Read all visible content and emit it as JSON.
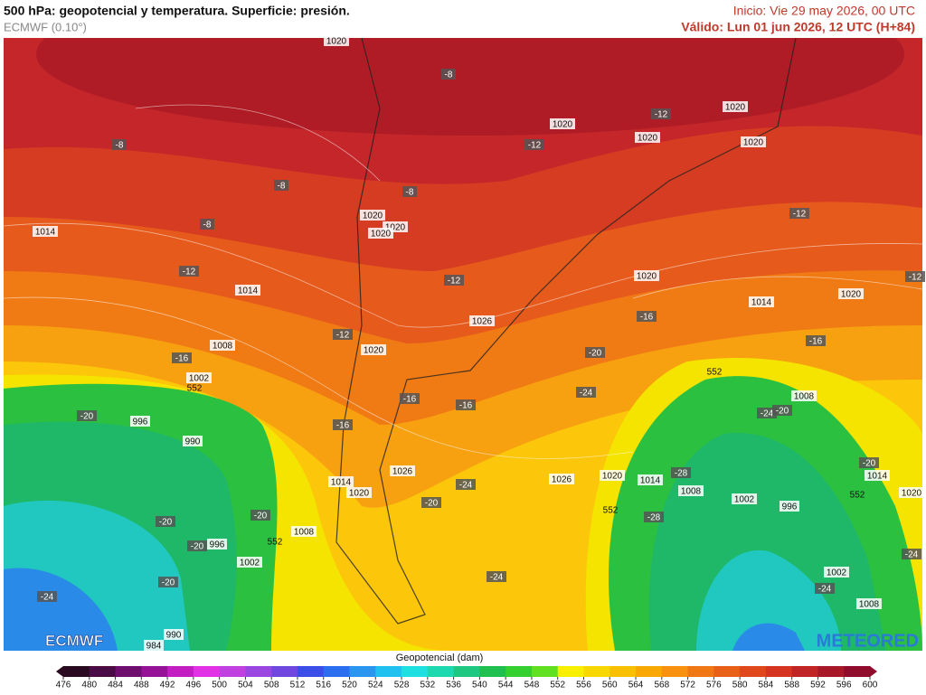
{
  "header": {
    "title": "500 hPa: geopotencial y temperatura. Superficie: presión.",
    "model": "ECMWF (0.10°)",
    "init": "Inicio: Vie 29 may 2026, 00 UTC",
    "valid": "Válido: Lun 01 jun 2026, 12 UTC (H+84)"
  },
  "logos": {
    "left": "ECMWF",
    "right": "METEORED"
  },
  "map": {
    "isobar_labels": [
      "1020",
      "1020",
      "1020",
      "1020",
      "1020",
      "1014",
      "1020",
      "1020",
      "1020",
      "1014",
      "1020",
      "1020",
      "1014",
      "1026",
      "1008",
      "1020",
      "1002",
      "1008",
      "996",
      "990",
      "1026",
      "1020",
      "1014",
      "1014",
      "1026",
      "1014",
      "1020",
      "1008",
      "1002",
      "1020",
      "996",
      "1008",
      "996",
      "1002",
      "1002",
      "1008",
      "990",
      "984"
    ],
    "temperature_labels": [
      "-8",
      "-12",
      "-12",
      "-8",
      "-8",
      "-8",
      "-12",
      "-8",
      "-12",
      "-12",
      "-12",
      "-16",
      "-12",
      "-16",
      "-20",
      "-16",
      "-24",
      "-16",
      "-16",
      "-20",
      "-24",
      "-20",
      "-16",
      "-20",
      "-28",
      "-24",
      "-20",
      "-20",
      "-28",
      "-20",
      "-20",
      "-24",
      "-24",
      "-20",
      "-24",
      "-24"
    ],
    "contour_labels": [
      "552",
      "552",
      "552",
      "552",
      "552"
    ]
  },
  "colorbar": {
    "title": "Geopotencial (dam)",
    "ticks": [
      476,
      480,
      484,
      488,
      492,
      496,
      500,
      504,
      508,
      512,
      516,
      520,
      524,
      528,
      532,
      536,
      540,
      544,
      548,
      552,
      556,
      560,
      564,
      568,
      572,
      576,
      580,
      584,
      588,
      592,
      596,
      600
    ],
    "colors": [
      "#2a0a20",
      "#4a0c44",
      "#6e0f70",
      "#961296",
      "#c21ec2",
      "#e232e6",
      "#c040e0",
      "#9a46e0",
      "#7048e0",
      "#3c4ee8",
      "#2c6ef0",
      "#2a96f0",
      "#20c0f0",
      "#1ee0e0",
      "#1ed8b0",
      "#1ec880",
      "#20c050",
      "#34d030",
      "#60e020",
      "#f8f000",
      "#f8d800",
      "#f8c000",
      "#f8a800",
      "#f89010",
      "#f07814",
      "#e86018",
      "#e0481c",
      "#d43420",
      "#c02424",
      "#a81828",
      "#900c2c"
    ]
  }
}
